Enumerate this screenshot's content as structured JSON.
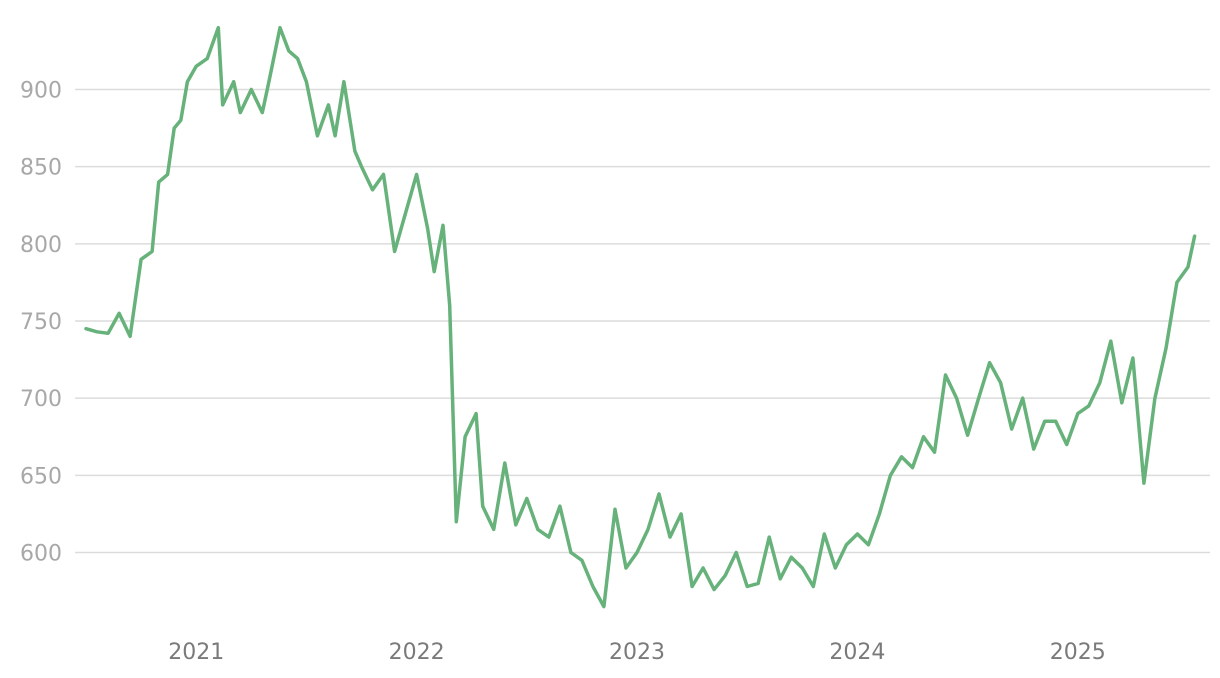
{
  "chart_data": {
    "type": "line",
    "title": "",
    "xlabel": "",
    "ylabel": "",
    "ylim": [
      555,
      945
    ],
    "xlim": [
      2020.45,
      2025.6
    ],
    "grid": true,
    "legend": "none",
    "y_ticks": [
      600,
      650,
      700,
      750,
      800,
      850,
      900
    ],
    "y_tick_labels": [
      "600",
      "650",
      "700",
      "750",
      "800",
      "850",
      "900"
    ],
    "x_ticks": [
      2021,
      2022,
      2023,
      2024,
      2025
    ],
    "x_tick_labels": [
      "2021",
      "2022",
      "2023",
      "2024",
      "2025"
    ],
    "series": [
      {
        "color": "#66b27a",
        "x": [
          2020.5,
          2020.55,
          2020.6,
          2020.65,
          2020.7,
          2020.75,
          2020.8,
          2020.83,
          2020.87,
          2020.9,
          2020.93,
          2020.96,
          2021.0,
          2021.05,
          2021.1,
          2021.12,
          2021.17,
          2021.2,
          2021.25,
          2021.3,
          2021.33,
          2021.38,
          2021.42,
          2021.46,
          2021.5,
          2021.55,
          2021.6,
          2021.63,
          2021.67,
          2021.72,
          2021.75,
          2021.8,
          2021.85,
          2021.9,
          2021.95,
          2022.0,
          2022.05,
          2022.08,
          2022.12,
          2022.15,
          2022.18,
          2022.22,
          2022.27,
          2022.3,
          2022.35,
          2022.4,
          2022.45,
          2022.5,
          2022.55,
          2022.6,
          2022.65,
          2022.7,
          2022.75,
          2022.8,
          2022.85,
          2022.9,
          2022.95,
          2023.0,
          2023.05,
          2023.1,
          2023.15,
          2023.2,
          2023.25,
          2023.3,
          2023.35,
          2023.4,
          2023.45,
          2023.5,
          2023.55,
          2023.6,
          2023.65,
          2023.7,
          2023.75,
          2023.8,
          2023.85,
          2023.9,
          2023.95,
          2024.0,
          2024.05,
          2024.1,
          2024.15,
          2024.2,
          2024.25,
          2024.3,
          2024.35,
          2024.4,
          2024.45,
          2024.5,
          2024.55,
          2024.6,
          2024.65,
          2024.7,
          2024.75,
          2024.8,
          2024.85,
          2024.9,
          2024.95,
          2025.0,
          2025.05,
          2025.1,
          2025.15,
          2025.2,
          2025.25,
          2025.3,
          2025.35,
          2025.4,
          2025.45,
          2025.5,
          2025.53
        ],
        "y": [
          745,
          743,
          742,
          755,
          740,
          790,
          795,
          840,
          845,
          875,
          880,
          905,
          915,
          920,
          940,
          890,
          905,
          885,
          900,
          885,
          905,
          940,
          925,
          920,
          905,
          870,
          890,
          870,
          905,
          860,
          850,
          835,
          845,
          795,
          820,
          845,
          810,
          782,
          812,
          760,
          620,
          675,
          690,
          630,
          615,
          658,
          618,
          635,
          615,
          610,
          630,
          600,
          595,
          578,
          565,
          628,
          590,
          600,
          615,
          638,
          610,
          625,
          578,
          590,
          576,
          585,
          600,
          578,
          580,
          610,
          583,
          597,
          590,
          578,
          612,
          590,
          605,
          612,
          605,
          625,
          650,
          662,
          655,
          675,
          665,
          715,
          700,
          676,
          700,
          723,
          710,
          680,
          700,
          667,
          685,
          685,
          670,
          690,
          695,
          710,
          737,
          697,
          726,
          645,
          700,
          732,
          775,
          785,
          805
        ]
      }
    ]
  }
}
